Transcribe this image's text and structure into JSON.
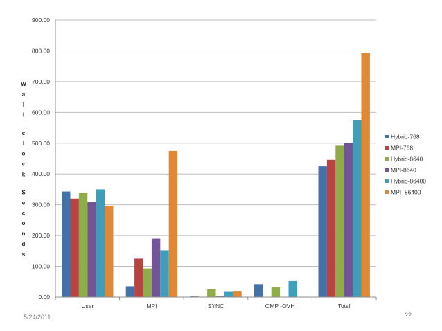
{
  "chart_data": {
    "type": "bar",
    "title": "",
    "xlabel": "",
    "ylabel": "Wall clock Seconds",
    "ylim": [
      0,
      900
    ],
    "y_ticks": [
      "0.00",
      "100.00",
      "200.00",
      "300.00",
      "400.00",
      "500.00",
      "600.00",
      "700.00",
      "800.00",
      "900.00"
    ],
    "grid": true,
    "legend_position": "right",
    "categories": [
      "User",
      "MPI",
      "SYNC",
      "OMP -OVH",
      "Total"
    ],
    "series": [
      {
        "name": "Hybrid-768",
        "color": "#4472a8",
        "values": [
          343,
          35,
          2,
          42,
          425
        ]
      },
      {
        "name": "MPI-768",
        "color": "#b54442",
        "values": [
          320,
          125,
          0,
          0,
          446
        ]
      },
      {
        "name": "Hybrid-8640",
        "color": "#8fac4b",
        "values": [
          339,
          93,
          25,
          32,
          492
        ]
      },
      {
        "name": "MPI-8640",
        "color": "#735597",
        "values": [
          309,
          190,
          2,
          0,
          501
        ]
      },
      {
        "name": "Hybrid-86400",
        "color": "#3f9fba",
        "values": [
          350,
          152,
          19,
          52,
          574
        ]
      },
      {
        "name": "MPI_86400",
        "color": "#dd8937",
        "values": [
          297,
          475,
          20,
          0,
          793
        ]
      }
    ]
  },
  "footer": {
    "date": "5/24/2011",
    "page": "22"
  }
}
